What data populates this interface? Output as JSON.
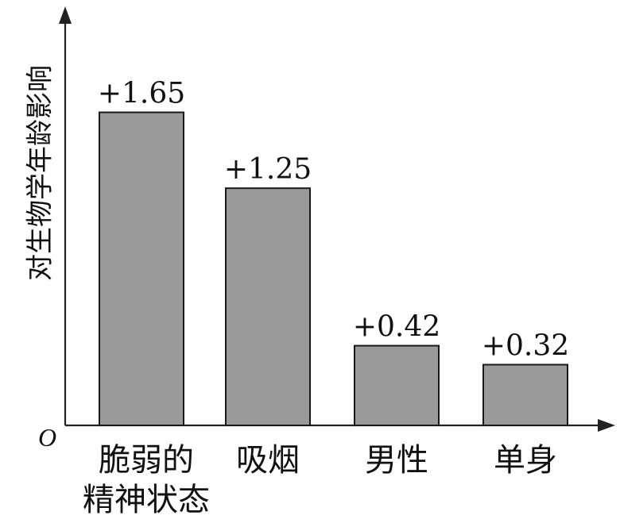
{
  "chart_data": {
    "type": "bar",
    "title": "",
    "ylabel": "对生物学年龄影响",
    "xlabel": "",
    "origin_label": "O",
    "categories": [
      [
        "脆弱的",
        "精神状态"
      ],
      [
        "吸烟"
      ],
      [
        "男性"
      ],
      [
        "单身"
      ]
    ],
    "values": [
      1.65,
      1.25,
      0.42,
      0.32
    ],
    "value_labels": [
      "+1.65",
      "+1.25",
      "+0.42",
      "+0.32"
    ],
    "ylim": [
      0,
      2.15
    ],
    "grid": false,
    "bar_color": "#9a9a9a"
  }
}
